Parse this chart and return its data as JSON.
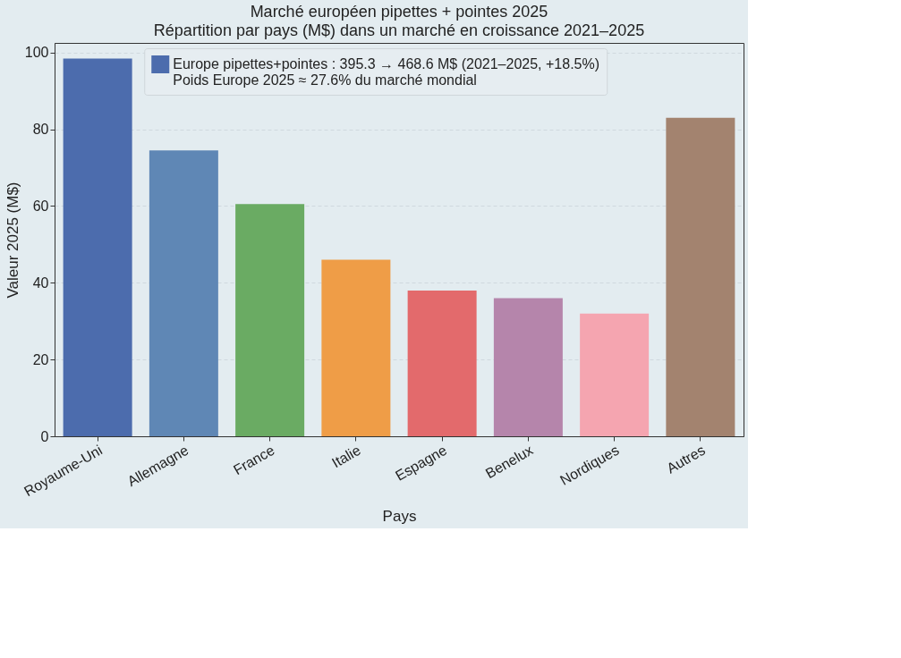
{
  "chart_data": {
    "type": "bar",
    "title": "Marché européen pipettes + pointes 2025",
    "subtitle": "Répartition par pays (M$) dans un marché en croissance 2021–2025",
    "xlabel": "Pays",
    "ylabel": "Valeur 2025 (M$)",
    "categories": [
      "Royaume-Uni",
      "Allemagne",
      "France",
      "Italie",
      "Espagne",
      "Benelux",
      "Nordiques",
      "Autres"
    ],
    "series": [
      {
        "name": "Europe pipettes+pointes : 395.3 → 468.6 M$ (2021–2025, +18.5%)\nPoids Europe 2025 ≈ 27.6% du marché mondial",
        "color": "#4c6cad",
        "values": [
          98.4,
          74.5,
          60.5,
          46.0,
          38.0,
          36.0,
          32.0,
          83.0
        ],
        "colors": [
          "#4c6cad",
          "#5f87b5",
          "#6aab63",
          "#ef9d47",
          "#e36a6c",
          "#b585ab",
          "#f5a5b0",
          "#a3836f"
        ]
      }
    ],
    "ylim": [
      0,
      102.5
    ],
    "yticks": [
      0,
      20,
      40,
      60,
      80,
      100
    ],
    "grid": "y",
    "legend": "top"
  }
}
